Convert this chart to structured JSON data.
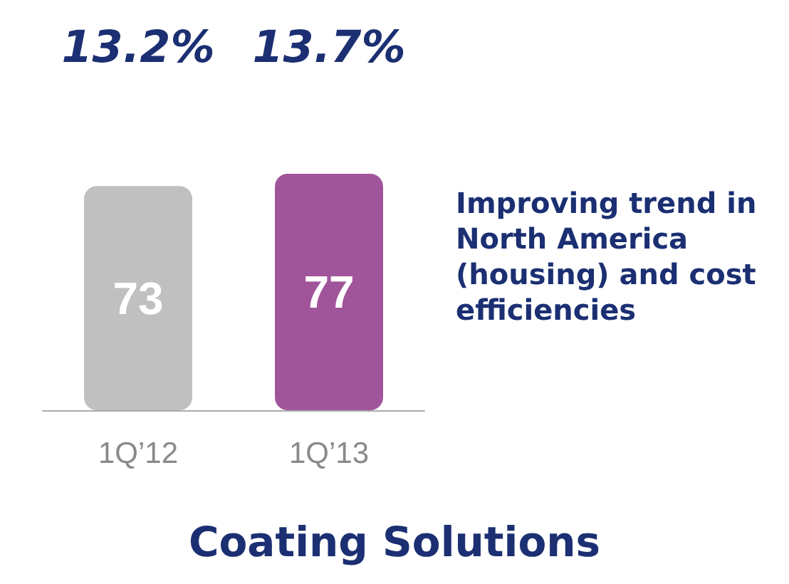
{
  "chart_data": {
    "type": "bar",
    "title": "Coating Solutions",
    "categories": [
      "1Q’12",
      "1Q’13"
    ],
    "values": [
      73,
      77
    ],
    "colors": [
      "#c0c0c0",
      "#a0559a"
    ],
    "data_labels": true,
    "annotations": [
      "13.2%",
      "13.7%",
      "Improving trend in North America (housing) and cost efficiencies"
    ]
  }
}
